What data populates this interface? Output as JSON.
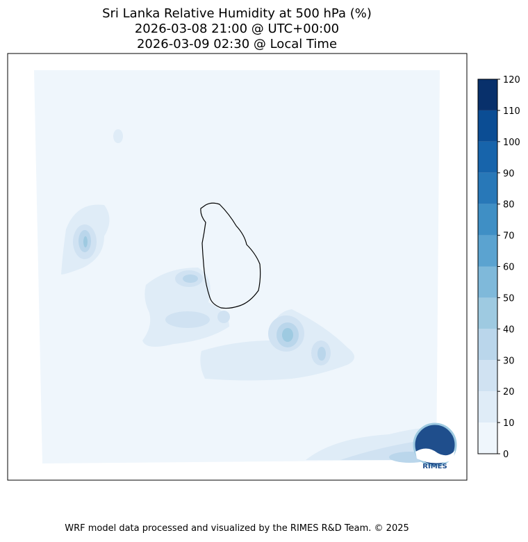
{
  "title": [
    "Sri Lanka Relative Humidity at 500 hPa (%)",
    "2026-03-08 21:00 @ UTC+00:00",
    "2026-03-09 02:30 @ Local Time"
  ],
  "colorbar": {
    "ticks": [
      0,
      10,
      20,
      30,
      40,
      50,
      60,
      70,
      80,
      90,
      100,
      110,
      120
    ],
    "colors": [
      "#eff6fc",
      "#dfecf7",
      "#d0e2f2",
      "#bad6eb",
      "#9ecae1",
      "#7fb9da",
      "#5ba3d0",
      "#3f8fc5",
      "#2878b8",
      "#1764ab",
      "#0b4d94",
      "#08306b"
    ]
  },
  "logo": "RIMES",
  "footer": "WRF model data processed and visualized by the RIMES R&D Team. © 2025"
}
